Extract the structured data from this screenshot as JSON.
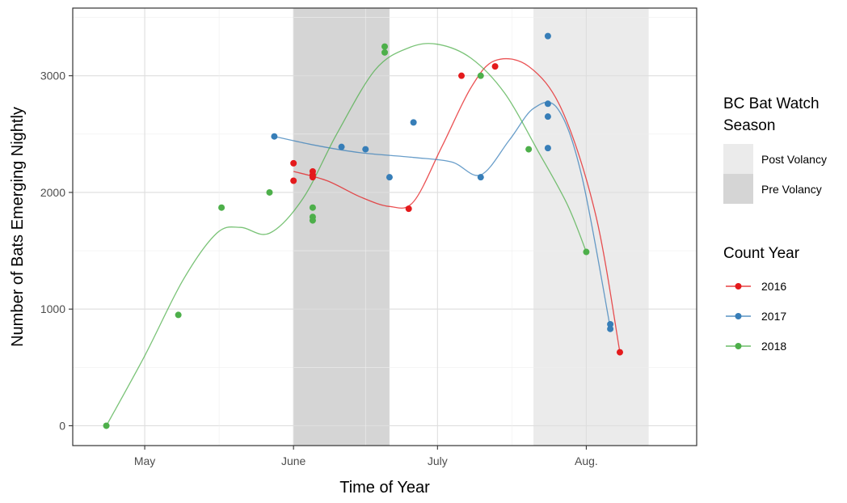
{
  "chart_data": {
    "type": "scatter",
    "xlabel": "Time of Year",
    "ylabel": "Number of Bats Emerging Nightly",
    "x_ticks": [
      {
        "label": "May",
        "date": "2021-05-01"
      },
      {
        "label": "June",
        "date": "2021-06-01"
      },
      {
        "label": "July",
        "date": "2021-07-01"
      },
      {
        "label": "Aug.",
        "date": "2021-08-01"
      }
    ],
    "xlim": [
      "2021-04-16",
      "2021-08-24"
    ],
    "y_ticks": [
      0,
      1000,
      2000,
      3000
    ],
    "ylim": [
      -170,
      3580
    ],
    "grid": true,
    "shaded_regions": [
      {
        "name": "Pre Volancy",
        "start": "2021-06-01",
        "end": "2021-06-21",
        "color": "#d5d5d5"
      },
      {
        "name": "Post Volancy",
        "start": "2021-07-21",
        "end": "2021-08-14",
        "color": "#ebebeb"
      }
    ],
    "legends": [
      {
        "title": [
          "BC Bat Watch",
          "Season"
        ],
        "items": [
          {
            "label": "Post Volancy",
            "color": "#ebebeb"
          },
          {
            "label": "Pre Volancy",
            "color": "#d5d5d5"
          }
        ]
      },
      {
        "title": [
          "Count Year"
        ],
        "items": [
          {
            "label": "2016",
            "color": "#e41a1c"
          },
          {
            "label": "2017",
            "color": "#377eb8"
          },
          {
            "label": "2018",
            "color": "#4daf4a"
          }
        ]
      }
    ],
    "series": [
      {
        "name": "2016",
        "color": "#e41a1c",
        "points": [
          {
            "x": "2021-06-01",
            "y": 2250
          },
          {
            "x": "2021-06-01",
            "y": 2100
          },
          {
            "x": "2021-06-05",
            "y": 2180
          },
          {
            "x": "2021-06-05",
            "y": 2150
          },
          {
            "x": "2021-06-05",
            "y": 2130
          },
          {
            "x": "2021-06-25",
            "y": 1860
          },
          {
            "x": "2021-07-06",
            "y": 3000
          },
          {
            "x": "2021-07-13",
            "y": 3080
          },
          {
            "x": "2021-08-08",
            "y": 630
          }
        ],
        "trend": [
          {
            "x": "2021-06-01",
            "y": 2180
          },
          {
            "x": "2021-06-08",
            "y": 2100
          },
          {
            "x": "2021-06-15",
            "y": 1960
          },
          {
            "x": "2021-06-21",
            "y": 1880
          },
          {
            "x": "2021-06-26",
            "y": 1920
          },
          {
            "x": "2021-07-02",
            "y": 2400
          },
          {
            "x": "2021-07-08",
            "y": 2900
          },
          {
            "x": "2021-07-13",
            "y": 3130
          },
          {
            "x": "2021-07-20",
            "y": 3080
          },
          {
            "x": "2021-07-27",
            "y": 2700
          },
          {
            "x": "2021-08-03",
            "y": 1800
          },
          {
            "x": "2021-08-08",
            "y": 630
          }
        ]
      },
      {
        "name": "2017",
        "color": "#377eb8",
        "points": [
          {
            "x": "2021-05-28",
            "y": 2480
          },
          {
            "x": "2021-06-11",
            "y": 2390
          },
          {
            "x": "2021-06-16",
            "y": 2370
          },
          {
            "x": "2021-06-21",
            "y": 2130
          },
          {
            "x": "2021-06-26",
            "y": 2600
          },
          {
            "x": "2021-07-10",
            "y": 2130
          },
          {
            "x": "2021-07-24",
            "y": 3340
          },
          {
            "x": "2021-07-24",
            "y": 2760
          },
          {
            "x": "2021-07-24",
            "y": 2650
          },
          {
            "x": "2021-07-24",
            "y": 2380
          },
          {
            "x": "2021-08-06",
            "y": 870
          },
          {
            "x": "2021-08-06",
            "y": 830
          }
        ],
        "trend": [
          {
            "x": "2021-05-28",
            "y": 2480
          },
          {
            "x": "2021-06-06",
            "y": 2400
          },
          {
            "x": "2021-06-15",
            "y": 2340
          },
          {
            "x": "2021-06-26",
            "y": 2300
          },
          {
            "x": "2021-07-04",
            "y": 2260
          },
          {
            "x": "2021-07-10",
            "y": 2150
          },
          {
            "x": "2021-07-16",
            "y": 2450
          },
          {
            "x": "2021-07-21",
            "y": 2720
          },
          {
            "x": "2021-07-26",
            "y": 2720
          },
          {
            "x": "2021-07-31",
            "y": 2150
          },
          {
            "x": "2021-08-06",
            "y": 840
          }
        ]
      },
      {
        "name": "2018",
        "color": "#4daf4a",
        "points": [
          {
            "x": "2021-04-23",
            "y": 0
          },
          {
            "x": "2021-05-08",
            "y": 950
          },
          {
            "x": "2021-05-17",
            "y": 1870
          },
          {
            "x": "2021-05-27",
            "y": 2000
          },
          {
            "x": "2021-06-05",
            "y": 1870
          },
          {
            "x": "2021-06-05",
            "y": 1790
          },
          {
            "x": "2021-06-05",
            "y": 1760
          },
          {
            "x": "2021-06-20",
            "y": 3250
          },
          {
            "x": "2021-06-20",
            "y": 3200
          },
          {
            "x": "2021-07-10",
            "y": 3000
          },
          {
            "x": "2021-07-20",
            "y": 2370
          },
          {
            "x": "2021-08-01",
            "y": 1490
          }
        ],
        "trend": [
          {
            "x": "2021-04-23",
            "y": 0
          },
          {
            "x": "2021-05-01",
            "y": 600
          },
          {
            "x": "2021-05-09",
            "y": 1250
          },
          {
            "x": "2021-05-16",
            "y": 1650
          },
          {
            "x": "2021-05-21",
            "y": 1700
          },
          {
            "x": "2021-05-27",
            "y": 1650
          },
          {
            "x": "2021-06-03",
            "y": 1950
          },
          {
            "x": "2021-06-10",
            "y": 2500
          },
          {
            "x": "2021-06-18",
            "y": 3050
          },
          {
            "x": "2021-06-25",
            "y": 3240
          },
          {
            "x": "2021-07-01",
            "y": 3270
          },
          {
            "x": "2021-07-08",
            "y": 3150
          },
          {
            "x": "2021-07-15",
            "y": 2850
          },
          {
            "x": "2021-07-22",
            "y": 2350
          },
          {
            "x": "2021-07-28",
            "y": 1900
          },
          {
            "x": "2021-08-01",
            "y": 1490
          }
        ]
      }
    ]
  }
}
